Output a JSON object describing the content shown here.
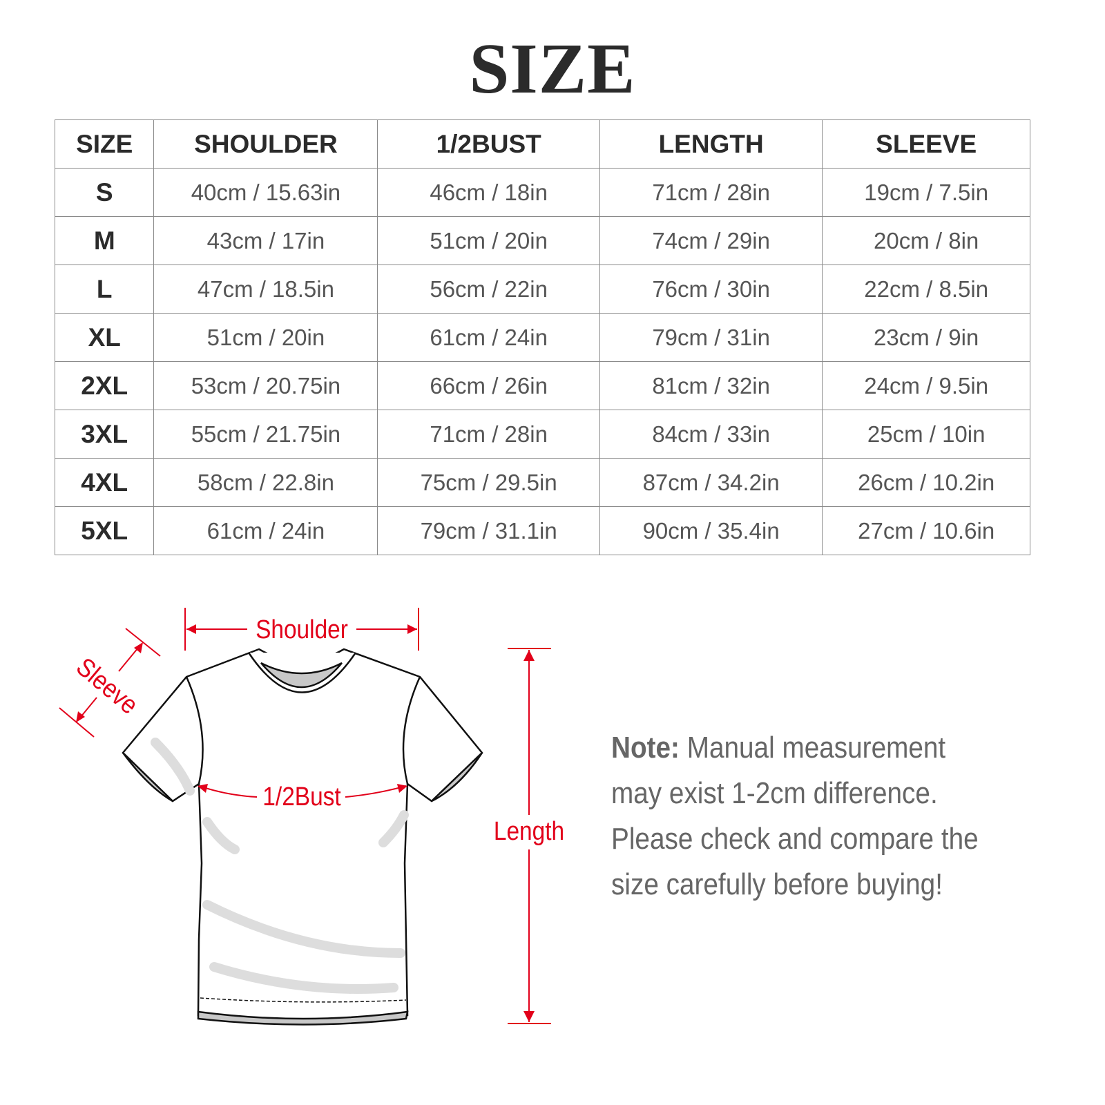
{
  "title": "SIZE",
  "table": {
    "headers": [
      "SIZE",
      "SHOULDER",
      "1/2BUST",
      "LENGTH",
      "SLEEVE"
    ],
    "rows": [
      [
        "S",
        "40cm / 15.63in",
        "46cm / 18in",
        "71cm / 28in",
        "19cm / 7.5in"
      ],
      [
        "M",
        "43cm / 17in",
        "51cm / 20in",
        "74cm / 29in",
        "20cm / 8in"
      ],
      [
        "L",
        "47cm / 18.5in",
        "56cm / 22in",
        "76cm / 30in",
        "22cm / 8.5in"
      ],
      [
        "XL",
        "51cm / 20in",
        "61cm / 24in",
        "79cm / 31in",
        "23cm / 9in"
      ],
      [
        "2XL",
        "53cm / 20.75in",
        "66cm / 26in",
        "81cm / 32in",
        "24cm / 9.5in"
      ],
      [
        "3XL",
        "55cm / 21.75in",
        "71cm / 28in",
        "84cm / 33in",
        "25cm / 10in"
      ],
      [
        "4XL",
        "58cm / 22.8in",
        "75cm / 29.5in",
        "87cm / 34.2in",
        "26cm / 10.2in"
      ],
      [
        "5XL",
        "61cm / 24in",
        "79cm / 31.1in",
        "90cm / 35.4in",
        "27cm / 10.6in"
      ]
    ]
  },
  "diagram": {
    "shoulder_label": "Shoulder",
    "sleeve_label": "Sleeve",
    "bust_label": "1/2Bust",
    "length_label": "Length",
    "annotation_color": "#e2001a"
  },
  "note": {
    "lead": "Note:",
    "text": " Manual measurement may exist 1-2cm difference. Please check and compare the size carefully before buying!"
  }
}
